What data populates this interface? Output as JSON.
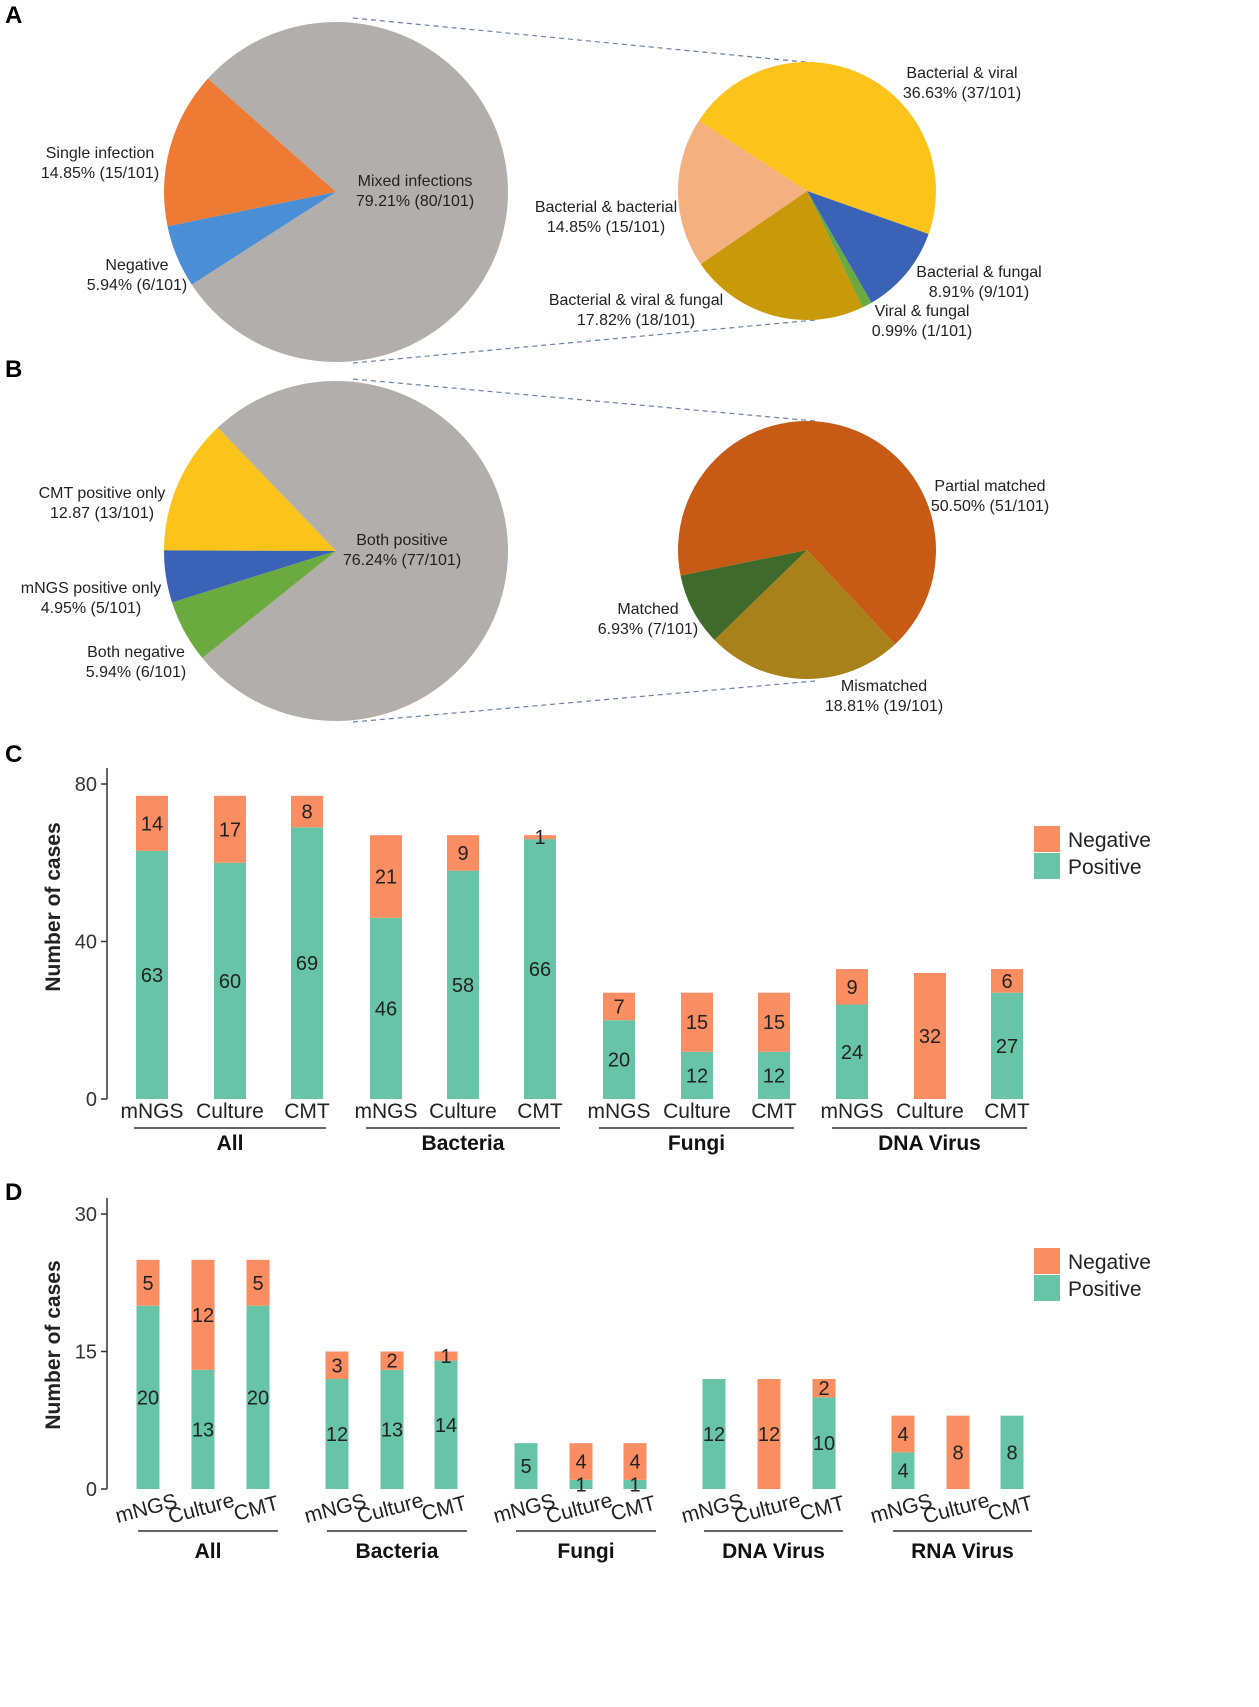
{
  "colors": {
    "gray": "#b2aeac",
    "orange": "#ef7a34",
    "blue": "#4a8fd6",
    "yellow": "#fcc41a",
    "peach": "#f4b07f",
    "olive": "#c89a0a",
    "dblue": "#3a63b8",
    "green": "#6aaa3e",
    "rust": "#c75a14",
    "dgreen": "#3f6a2b",
    "brown": "#a8811a",
    "neg": "#fa8d62",
    "pos": "#67c4a6",
    "line": "#333333",
    "dash": "#6c7fa8"
  },
  "chart_data": [
    {
      "panel": "A",
      "type": "pie",
      "main": {
        "slices": [
          {
            "label": "Mixed infections",
            "value_text": "79.21% (80/101)",
            "value": 79.21,
            "color": "gray"
          },
          {
            "label": "Single infection",
            "value_text": "14.85% (15/101)",
            "value": 14.85,
            "color": "orange"
          },
          {
            "label": "Negative",
            "value_text": "5.94% (6/101)",
            "value": 5.94,
            "color": "blue"
          }
        ]
      },
      "breakdown": {
        "of": "Mixed infections",
        "slices": [
          {
            "label": "Bacterial & viral",
            "value_text": "36.63% (37/101)",
            "value": 36.63,
            "color": "yellow"
          },
          {
            "label": "Bacterial & fungal",
            "value_text": "8.91% (9/101)",
            "value": 8.91,
            "color": "dblue"
          },
          {
            "label": "Viral & fungal",
            "value_text": "0.99% (1/101)",
            "value": 0.99,
            "color": "green"
          },
          {
            "label": "Bacterial & viral & fungal",
            "value_text": "17.82% (18/101)",
            "value": 17.82,
            "color": "olive"
          },
          {
            "label": "Bacterial & bacterial",
            "value_text": "14.85% (15/101)",
            "value": 14.85,
            "color": "peach"
          }
        ]
      }
    },
    {
      "panel": "B",
      "type": "pie",
      "main": {
        "slices": [
          {
            "label": "Both positive",
            "value_text": "76.24% (77/101)",
            "value": 76.24,
            "color": "gray"
          },
          {
            "label": "CMT positive only",
            "value_text": "12.87 (13/101)",
            "value": 12.87,
            "color": "yellow"
          },
          {
            "label": "mNGS positive only",
            "value_text": "4.95% (5/101)",
            "value": 4.95,
            "color": "dblue"
          },
          {
            "label": "Both negative",
            "value_text": "5.94% (6/101)",
            "value": 5.94,
            "color": "green"
          }
        ]
      },
      "breakdown": {
        "of": "Both positive",
        "slices": [
          {
            "label": "Partial matched",
            "value_text": "50.50% (51/101)",
            "value": 50.5,
            "color": "rust"
          },
          {
            "label": "Mismatched",
            "value_text": "18.81% (19/101)",
            "value": 18.81,
            "color": "brown"
          },
          {
            "label": "Matched",
            "value_text": "6.93% (7/101)",
            "value": 6.93,
            "color": "dgreen"
          }
        ]
      }
    },
    {
      "panel": "C",
      "type": "bar",
      "stacked": true,
      "ylabel": "Number of cases",
      "ylim": [
        0,
        80
      ],
      "yticks": [
        "0",
        "40",
        "80"
      ],
      "legend": [
        "Negative",
        "Positive"
      ],
      "legend_position": "right",
      "groups": [
        {
          "name": "All",
          "bars": [
            {
              "cat": "mNGS",
              "positive": 63,
              "negative": 14,
              "pos_label": "63",
              "neg_label": "14"
            },
            {
              "cat": "Culture",
              "positive": 60,
              "negative": 17,
              "pos_label": "60",
              "neg_label": "17"
            },
            {
              "cat": "CMT",
              "positive": 69,
              "negative": 8,
              "pos_label": "69",
              "neg_label": "8"
            }
          ]
        },
        {
          "name": "Bacteria",
          "bars": [
            {
              "cat": "mNGS",
              "positive": 46,
              "negative": 21,
              "pos_label": "46",
              "neg_label": "21"
            },
            {
              "cat": "Culture",
              "positive": 58,
              "negative": 9,
              "pos_label": "58",
              "neg_label": "9"
            },
            {
              "cat": "CMT",
              "positive": 66,
              "negative": 1,
              "pos_label": "66",
              "neg_label": "1"
            }
          ]
        },
        {
          "name": "Fungi",
          "bars": [
            {
              "cat": "mNGS",
              "positive": 20,
              "negative": 7,
              "pos_label": "20",
              "neg_label": "7"
            },
            {
              "cat": "Culture",
              "positive": 12,
              "negative": 15,
              "pos_label": "12",
              "neg_label": "15"
            },
            {
              "cat": "CMT",
              "positive": 12,
              "negative": 15,
              "pos_label": "12",
              "neg_label": "15"
            }
          ]
        },
        {
          "name": "DNA Virus",
          "bars": [
            {
              "cat": "mNGS",
              "positive": 24,
              "negative": 9,
              "pos_label": "24",
              "neg_label": "9"
            },
            {
              "cat": "Culture",
              "positive": 0,
              "negative": 32,
              "pos_label": "",
              "neg_label": "32"
            },
            {
              "cat": "CMT",
              "positive": 27,
              "negative": 6,
              "pos_label": "27",
              "neg_label": "6"
            }
          ]
        }
      ]
    },
    {
      "panel": "D",
      "type": "bar",
      "stacked": true,
      "ylabel": "Number of cases",
      "ylim": [
        0,
        30
      ],
      "yticks": [
        "0",
        "15",
        "30"
      ],
      "legend": [
        "Negative",
        "Positive"
      ],
      "legend_position": "right",
      "rotated_categories": true,
      "groups": [
        {
          "name": "All",
          "bars": [
            {
              "cat": "mNGS",
              "positive": 20,
              "negative": 5,
              "pos_label": "20",
              "neg_label": "5"
            },
            {
              "cat": "Culture",
              "positive": 13,
              "negative": 12,
              "pos_label": "13",
              "neg_label": "12"
            },
            {
              "cat": "CMT",
              "positive": 20,
              "negative": 5,
              "pos_label": "20",
              "neg_label": "5"
            }
          ]
        },
        {
          "name": "Bacteria",
          "bars": [
            {
              "cat": "mNGS",
              "positive": 12,
              "negative": 3,
              "pos_label": "12",
              "neg_label": "3"
            },
            {
              "cat": "Culture",
              "positive": 13,
              "negative": 2,
              "pos_label": "13",
              "neg_label": "2"
            },
            {
              "cat": "CMT",
              "positive": 14,
              "negative": 1,
              "pos_label": "14",
              "neg_label": "1"
            }
          ]
        },
        {
          "name": "Fungi",
          "bars": [
            {
              "cat": "mNGS",
              "positive": 5,
              "negative": 0,
              "pos_label": "5",
              "neg_label": ""
            },
            {
              "cat": "Culture",
              "positive": 1,
              "negative": 4,
              "pos_label": "1",
              "neg_label": "4"
            },
            {
              "cat": "CMT",
              "positive": 1,
              "negative": 4,
              "pos_label": "1",
              "neg_label": "4"
            }
          ]
        },
        {
          "name": "DNA Virus",
          "bars": [
            {
              "cat": "mNGS",
              "positive": 12,
              "negative": 0,
              "pos_label": "12",
              "neg_label": ""
            },
            {
              "cat": "Culture",
              "positive": 0,
              "negative": 12,
              "pos_label": "",
              "neg_label": "12"
            },
            {
              "cat": "CMT",
              "positive": 10,
              "negative": 2,
              "pos_label": "10",
              "neg_label": "2"
            }
          ]
        },
        {
          "name": "RNA Virus",
          "bars": [
            {
              "cat": "mNGS",
              "positive": 4,
              "negative": 4,
              "pos_label": "4",
              "neg_label": "4"
            },
            {
              "cat": "Culture",
              "positive": 0,
              "negative": 8,
              "pos_label": "",
              "neg_label": "8"
            },
            {
              "cat": "CMT",
              "positive": 8,
              "negative": 0,
              "pos_label": "8",
              "neg_label": ""
            }
          ]
        }
      ]
    }
  ]
}
